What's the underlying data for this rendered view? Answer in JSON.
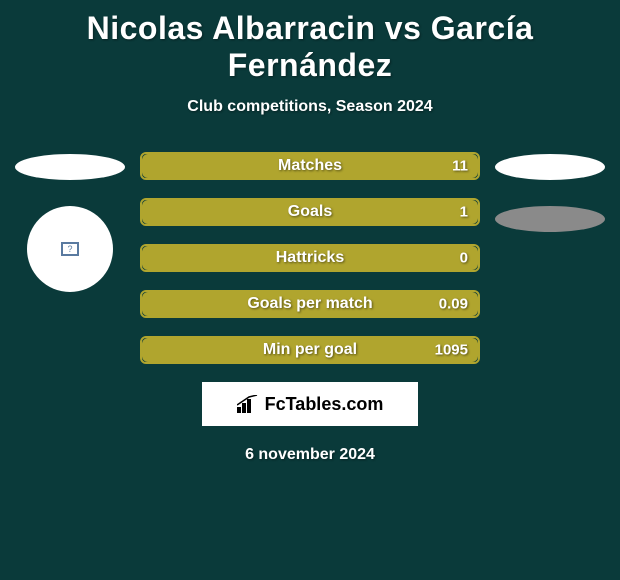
{
  "title": "Nicolas Albarracin vs García Fernández",
  "subtitle": "Club competitions, Season 2024",
  "date": "6 november 2024",
  "logo_text": "FcTables.com",
  "background_color": "#0a3a3a",
  "bar_fill_color": "#b0a52e",
  "bar_border_color": "#b0a52e",
  "text_color": "#ffffff",
  "title_fontsize": 32,
  "subtitle_fontsize": 16,
  "bar_label_fontsize": 16,
  "bar_value_fontsize": 15,
  "stats": [
    {
      "label": "Matches",
      "value": "11",
      "fill_pct": 100
    },
    {
      "label": "Goals",
      "value": "1",
      "fill_pct": 100
    },
    {
      "label": "Hattricks",
      "value": "0",
      "fill_pct": 100
    },
    {
      "label": "Goals per match",
      "value": "0.09",
      "fill_pct": 100
    },
    {
      "label": "Min per goal",
      "value": "1095",
      "fill_pct": 100
    }
  ],
  "left_shapes": {
    "ellipse_color": "#ffffff",
    "circle_color": "#ffffff",
    "small_box_glyph": "?"
  },
  "right_shapes": {
    "ellipse1_color": "#ffffff",
    "ellipse2_color": "#8a8a8a"
  }
}
